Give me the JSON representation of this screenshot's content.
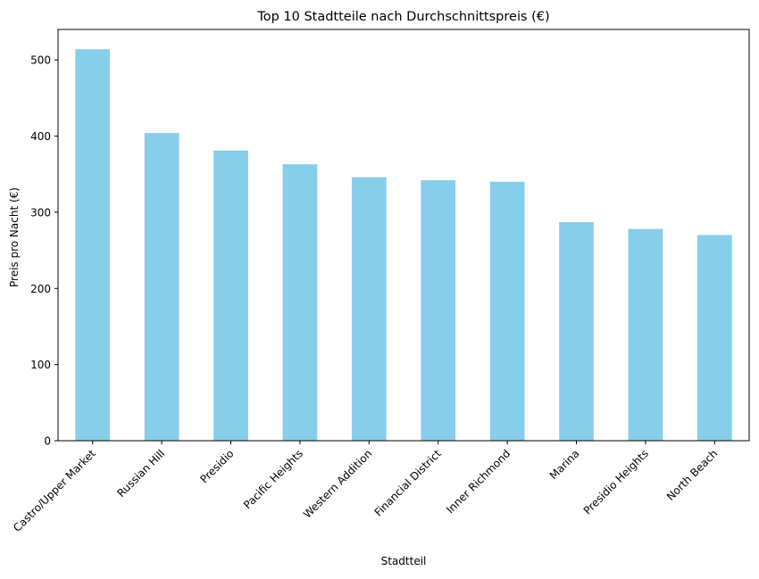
{
  "chart_data": {
    "type": "bar",
    "title": "Top 10 Stadtteile nach Durchschnittspreis (€)",
    "xlabel": "Stadtteil",
    "ylabel": "Preis pro Nacht (€)",
    "ylim": [
      0,
      540
    ],
    "yticks": [
      0,
      100,
      200,
      300,
      400,
      500
    ],
    "grid": false,
    "bar_color": "#87ceeb",
    "categories": [
      "Castro/Upper Market",
      "Russian Hill",
      "Presidio",
      "Pacific Heights",
      "Western Addition",
      "Financial District",
      "Inner Richmond",
      "Marina",
      "Presidio Heights",
      "North Beach"
    ],
    "values": [
      514,
      404,
      381,
      363,
      346,
      342,
      340,
      287,
      278,
      270
    ]
  }
}
